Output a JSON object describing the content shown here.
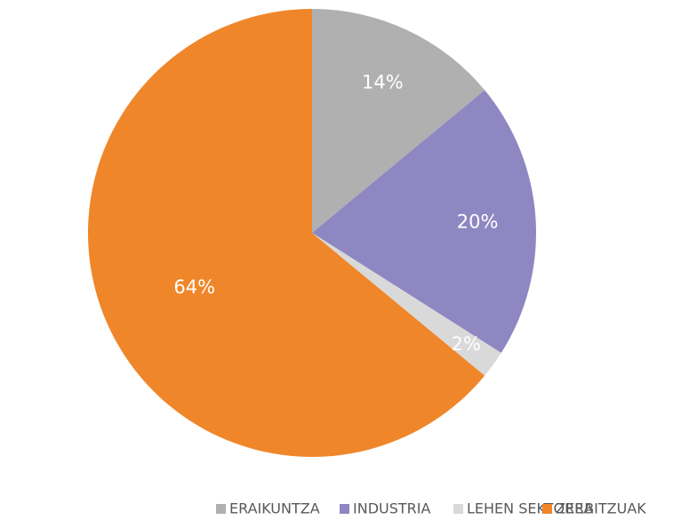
{
  "chart_data": {
    "type": "pie",
    "categories": [
      "ERAIKUNTZA",
      "INDUSTRIA",
      "LEHEN SEKTOREA",
      "ZERBITZUAK"
    ],
    "values": [
      14,
      20,
      2,
      64
    ],
    "value_labels": [
      "14%",
      "20%",
      "2%",
      "64%"
    ],
    "colors": [
      "#b0b0b0",
      "#8e87c2",
      "#d9d9d9",
      "#f0862a"
    ],
    "legend": "bottom"
  }
}
